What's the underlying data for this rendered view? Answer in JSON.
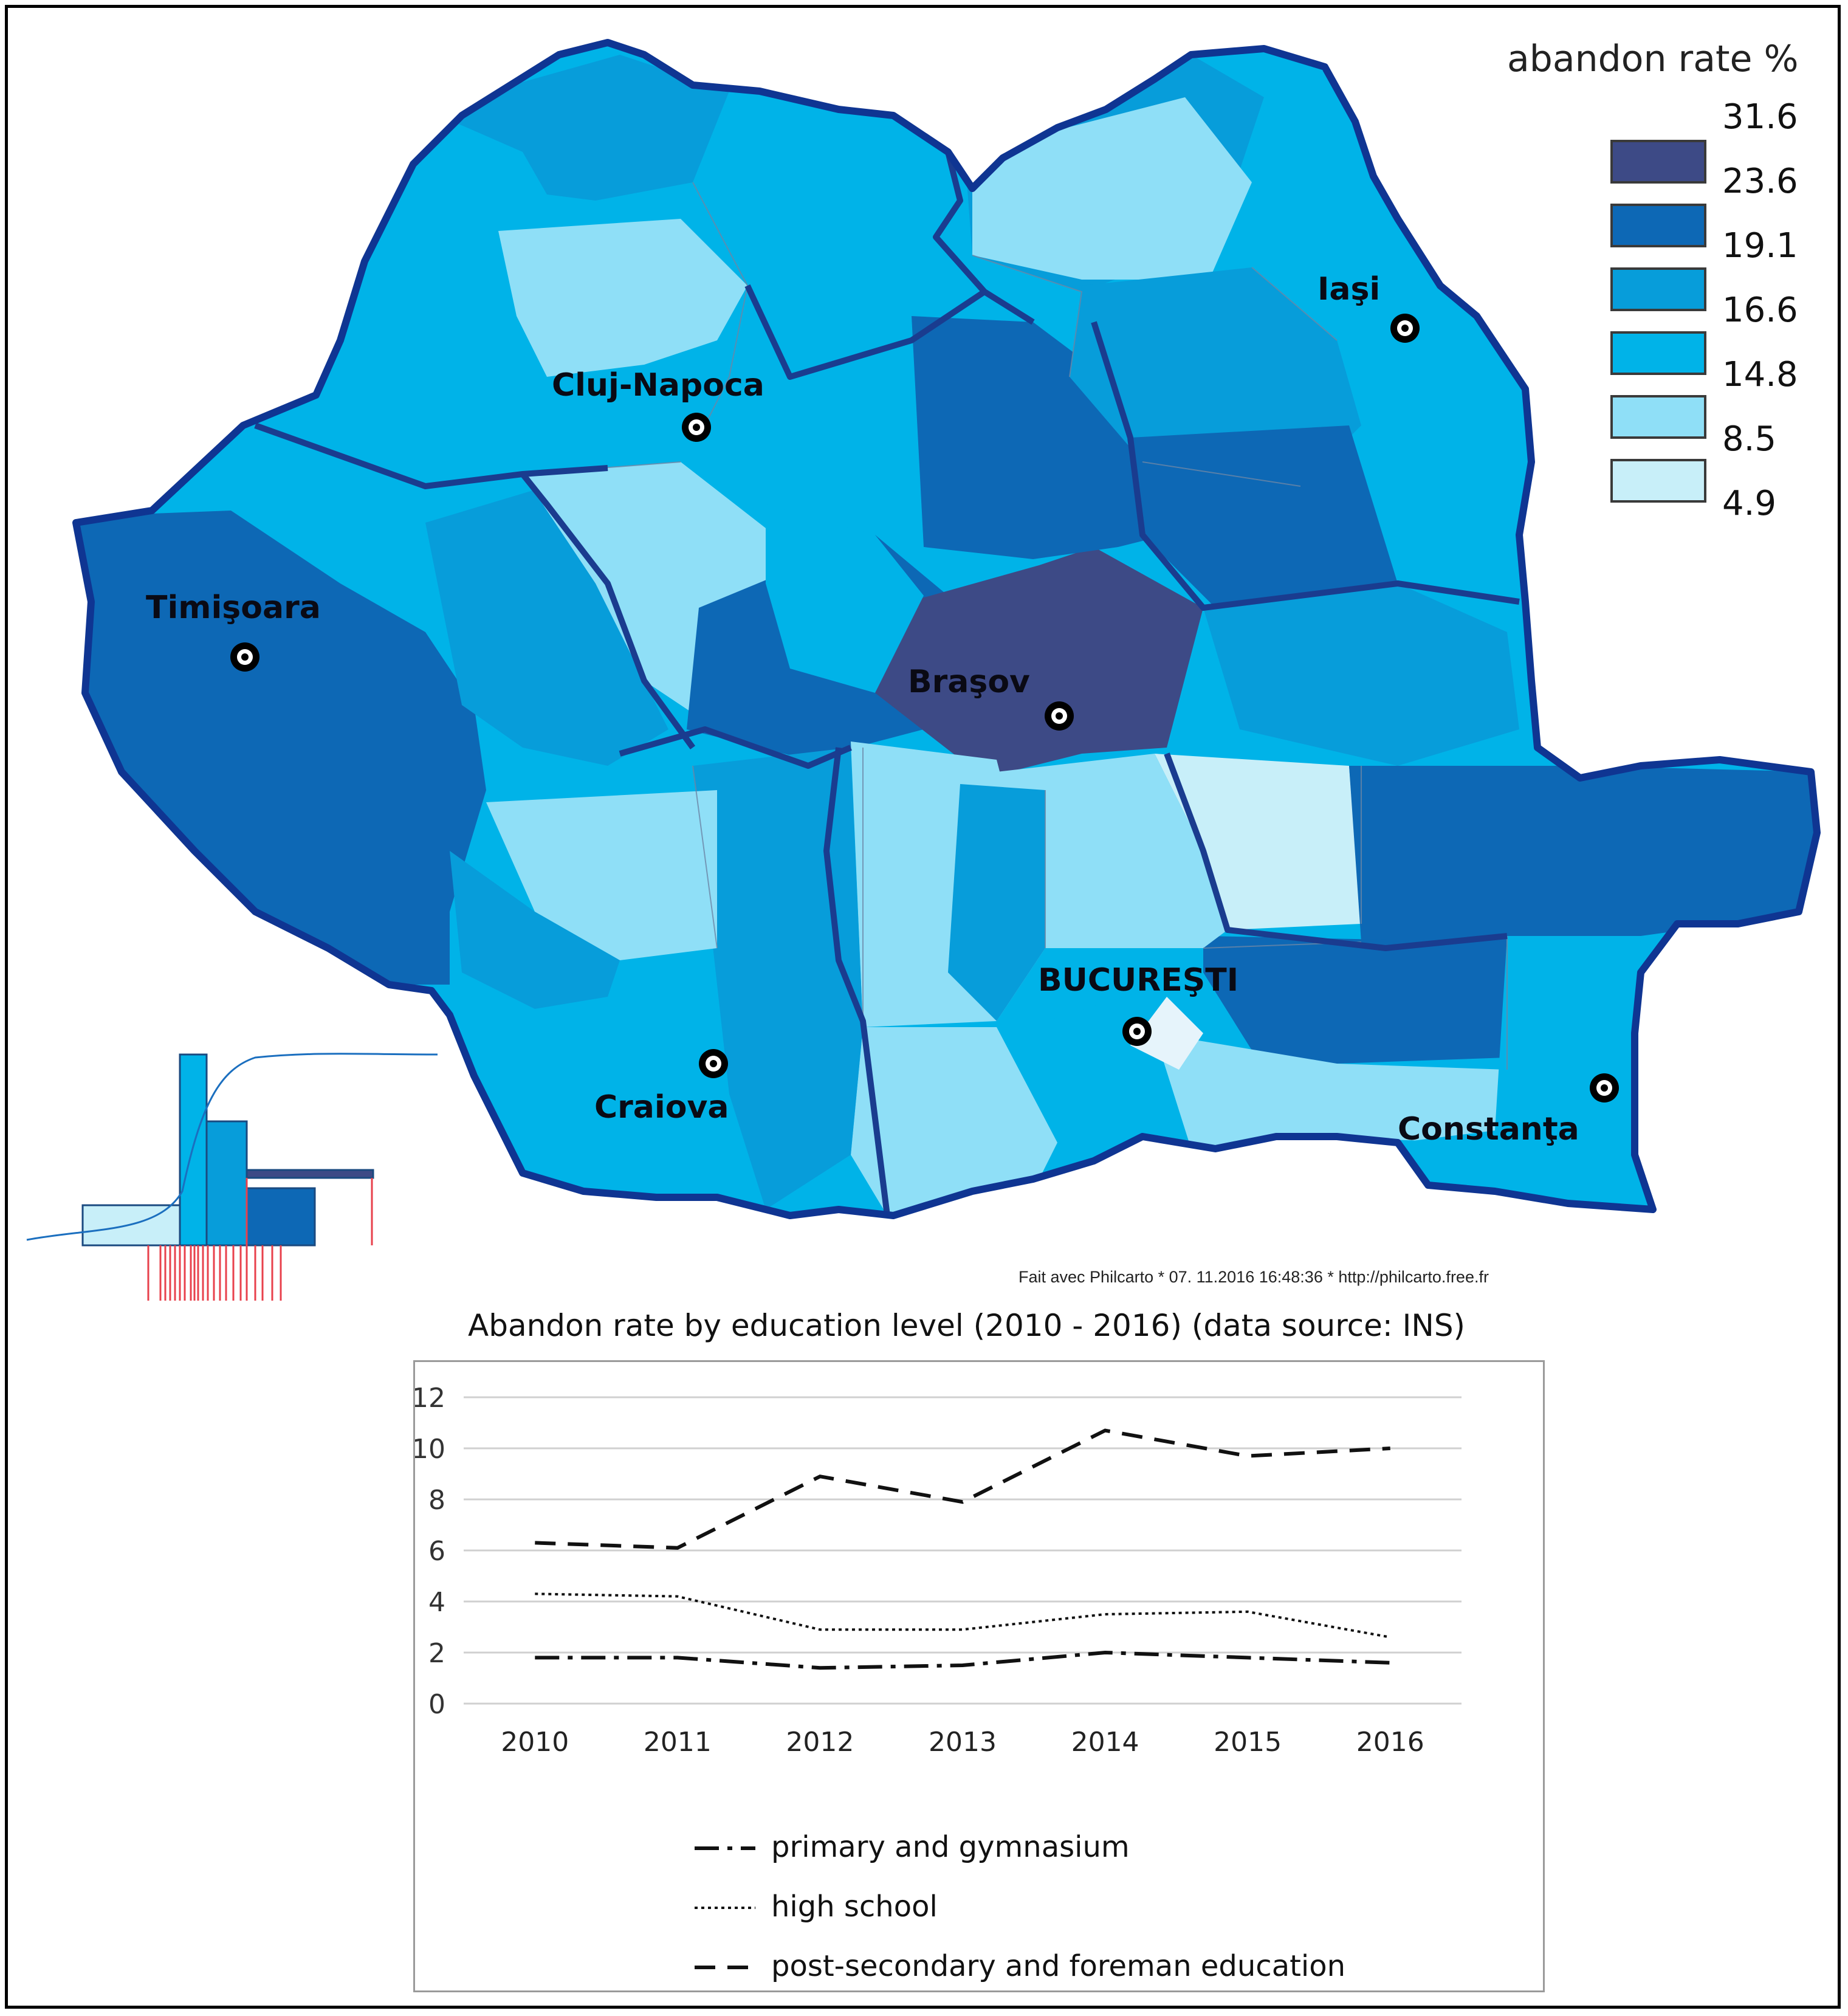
{
  "map": {
    "legend": {
      "title": "abandon rate %",
      "breaks": [
        "31.6",
        "23.6",
        "19.1",
        "16.6",
        "14.8",
        "8.5",
        "4.9"
      ],
      "colors": [
        "#3d4a86",
        "#0d68b5",
        "#079dda",
        "#00b3e8",
        "#8fdff7",
        "#c8eff9"
      ]
    },
    "cities": [
      {
        "name": "Iaşi"
      },
      {
        "name": "Cluj-Napoca"
      },
      {
        "name": "Timişoara"
      },
      {
        "name": "Braşov"
      },
      {
        "name": "BUCUREŞTI"
      },
      {
        "name": "Craiova"
      },
      {
        "name": "Constanţa"
      }
    ],
    "credit": "Fait avec Philcarto * 07.  11.2016 16:48:36 * http://philcarto.free.fr"
  },
  "chart_data": {
    "type": "line",
    "title": "Abandon rate by education level (2010 - 2016) (data source: INS)",
    "categories": [
      "2010",
      "2011",
      "2012",
      "2013",
      "2014",
      "2015",
      "2016"
    ],
    "ylim": [
      0,
      12
    ],
    "yticks": [
      "0",
      "2",
      "4",
      "6",
      "8",
      "10",
      "12"
    ],
    "series": [
      {
        "name": "primary and gymnasium",
        "style": "dash-dot",
        "values": [
          1.8,
          1.8,
          1.4,
          1.5,
          2.0,
          1.8,
          1.6
        ]
      },
      {
        "name": "high school",
        "style": "dotted",
        "values": [
          4.3,
          4.2,
          2.9,
          2.9,
          3.5,
          3.6,
          2.6
        ]
      },
      {
        "name": "post-secondary and foreman education",
        "style": "dashed",
        "values": [
          6.3,
          6.1,
          8.9,
          7.9,
          10.7,
          9.7,
          10.0
        ]
      }
    ]
  }
}
